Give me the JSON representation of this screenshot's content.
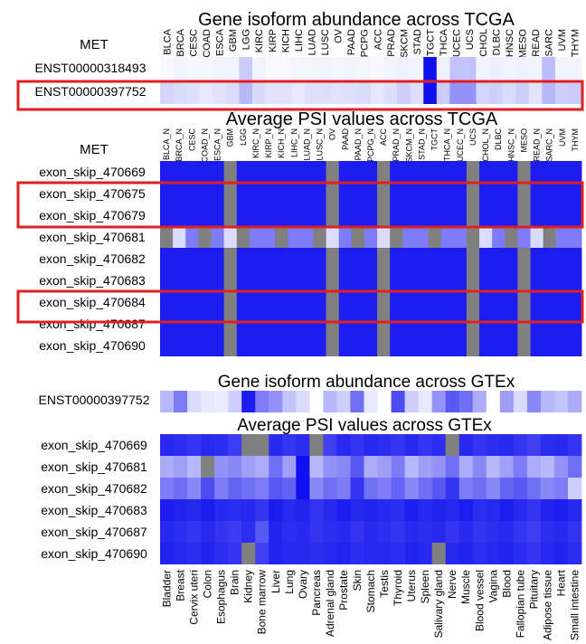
{
  "colors": {
    "high": "#1010ee",
    "low": "#ffffff",
    "na": "#808080",
    "highlight": "#e02020"
  },
  "chart_data": [
    {
      "type": "heatmap",
      "title": "Gene isoform abundance across TCGA",
      "gene": "MET",
      "columns": [
        "BLCA",
        "BRCA",
        "CESC",
        "COAD",
        "ESCA",
        "GBM",
        "LGG",
        "KIRC",
        "KIRP",
        "KICH",
        "LIHC",
        "LUAD",
        "LUSC",
        "OV",
        "PAAD",
        "PCPG",
        "ACC",
        "PRAD",
        "SKCM",
        "STAD",
        "TGCT",
        "THCA",
        "UCEC",
        "UCS",
        "CHOL",
        "DLBC",
        "HNSC",
        "MESO",
        "READ",
        "SARC",
        "UVM",
        "THYM"
      ],
      "rows": [
        "ENST00000318493",
        "ENST00000397752"
      ],
      "values": [
        [
          0.03,
          0.05,
          0.04,
          0.04,
          0.05,
          0.05,
          0.22,
          0.05,
          0.03,
          0.03,
          0.04,
          0.04,
          0.05,
          0.04,
          0.05,
          0.04,
          0.03,
          0.05,
          0.06,
          0.05,
          1.0,
          0.06,
          0.25,
          0.25,
          0.05,
          0.07,
          0.05,
          0.06,
          0.05,
          0.28,
          0.05,
          0.05
        ],
        [
          0.18,
          0.15,
          0.14,
          0.1,
          0.12,
          0.15,
          0.3,
          0.16,
          0.12,
          0.12,
          0.1,
          0.14,
          0.14,
          0.12,
          0.14,
          0.15,
          0.1,
          0.14,
          0.2,
          0.14,
          1.0,
          0.22,
          0.45,
          0.45,
          0.18,
          0.2,
          0.15,
          0.2,
          0.12,
          0.3,
          0.2,
          0.22
        ]
      ],
      "highlighted_rows": [
        "ENST00000397752"
      ]
    },
    {
      "type": "heatmap",
      "title": "Average PSI values across TCGA",
      "gene": "MET",
      "columns": [
        "BLCA_N",
        "BRCA_N",
        "CESC",
        "COAD_N",
        "ESCA_N",
        "GBM",
        "LGG",
        "KIRC_N",
        "KIRP_N",
        "KICH_N",
        "LIHC_N",
        "LUAD_N",
        "LUSC_N",
        "OV",
        "PAAD",
        "PAAD_N",
        "PCPG_N",
        "ACC",
        "PRAD_N",
        "SKCM_N",
        "STAD_N",
        "TGCT",
        "THCA_N",
        "UCEC_N",
        "UCS",
        "CHOL_N",
        "DLBC",
        "HNSC_N",
        "MESO",
        "READ_N",
        "SARC_N",
        "UVM",
        "THYM"
      ],
      "rows": [
        "exon_skip_470669",
        "exon_skip_470675",
        "exon_skip_470679",
        "exon_skip_470681",
        "exon_skip_470682",
        "exon_skip_470683",
        "exon_skip_470684",
        "exon_skip_470687",
        "exon_skip_470690"
      ],
      "na_columns": [
        5,
        13,
        17,
        24,
        28
      ],
      "highlighted_rows": [
        "exon_skip_470675",
        "exon_skip_470679",
        "exon_skip_470684"
      ],
      "row_values": [
        0.95,
        0.95,
        0.95,
        0.45,
        0.95,
        0.95,
        0.95,
        0.95,
        0.95
      ]
    },
    {
      "type": "heatmap",
      "title": "Gene isoform abundance across GTEx",
      "columns": [
        "Bladder",
        "Breast",
        "Cervix uteri",
        "Colon",
        "Esophagus",
        "Brain",
        "Kidney",
        "Bone marrow",
        "Liver",
        "Lung",
        "Ovary",
        "Pancreas",
        "Adrenal gland",
        "Prostate",
        "Skin",
        "Stomach",
        "Testis",
        "Thyroid",
        "Uterus",
        "Spleen",
        "Salivary gland",
        "Nerve",
        "Muscle",
        "Blood vessel",
        "Vagina",
        "Blood",
        "Fallopian tube",
        "Pituitary",
        "Adipose tissue",
        "Heart",
        "Small intestine"
      ],
      "rows": [
        "ENST00000397752"
      ],
      "values": [
        [
          0.3,
          0.55,
          0.15,
          0.1,
          0.08,
          0.2,
          0.95,
          0.55,
          0.45,
          0.25,
          0.15,
          0.0,
          0.3,
          0.2,
          0.6,
          0.1,
          0.0,
          0.75,
          0.2,
          0.1,
          0.45,
          0.7,
          0.6,
          0.35,
          0.0,
          0.4,
          0.15,
          0.5,
          0.3,
          0.25,
          0.35
        ]
      ]
    },
    {
      "type": "heatmap",
      "title": "Average PSI values across GTEx",
      "columns": [
        "Bladder",
        "Breast",
        "Cervix uteri",
        "Colon",
        "Esophagus",
        "Brain",
        "Kidney",
        "Bone marrow",
        "Liver",
        "Lung",
        "Ovary",
        "Pancreas",
        "Adrenal gland",
        "Prostate",
        "Skin",
        "Stomach",
        "Testis",
        "Thyroid",
        "Uterus",
        "Spleen",
        "Salivary gland",
        "Nerve",
        "Muscle",
        "Blood vessel",
        "Vagina",
        "Blood",
        "Fallopian tube",
        "Pituitary",
        "Adipose tissue",
        "Heart",
        "Small intestine"
      ],
      "rows": [
        "exon_skip_470669",
        "exon_skip_470681",
        "exon_skip_470682",
        "exon_skip_470683",
        "exon_skip_470687",
        "exon_skip_470690"
      ],
      "values": [
        [
          0.9,
          0.88,
          0.85,
          0.9,
          0.88,
          0.82,
          null,
          null,
          0.9,
          0.85,
          0.88,
          null,
          0.8,
          0.9,
          0.85,
          0.9,
          0.88,
          0.85,
          0.9,
          0.85,
          0.88,
          null,
          0.9,
          0.85,
          0.88,
          0.9,
          0.85,
          0.8,
          0.88,
          0.9,
          0.85
        ],
        [
          0.35,
          0.4,
          0.3,
          null,
          0.45,
          0.5,
          0.4,
          0.35,
          0.6,
          0.4,
          1.0,
          0.3,
          0.45,
          0.5,
          0.7,
          0.35,
          0.4,
          0.55,
          0.3,
          0.4,
          0.45,
          0.6,
          0.35,
          0.5,
          0.3,
          0.4,
          0.55,
          0.35,
          0.3,
          0.45,
          0.6
        ],
        [
          0.55,
          0.6,
          0.5,
          0.75,
          0.55,
          0.65,
          0.6,
          0.55,
          0.7,
          0.65,
          1.0,
          0.5,
          0.6,
          0.55,
          0.85,
          0.6,
          0.55,
          0.65,
          0.5,
          0.6,
          0.7,
          0.85,
          0.55,
          0.6,
          0.5,
          0.65,
          0.7,
          0.6,
          0.5,
          0.55,
          0.2
        ],
        [
          0.95,
          0.92,
          0.9,
          0.95,
          0.9,
          0.88,
          0.9,
          0.85,
          0.95,
          0.9,
          0.92,
          0.85,
          0.9,
          0.95,
          0.9,
          0.92,
          0.9,
          0.88,
          0.95,
          0.9,
          0.92,
          0.9,
          0.95,
          0.88,
          0.9,
          0.95,
          0.9,
          0.85,
          0.92,
          0.95,
          0.9
        ],
        [
          0.9,
          0.88,
          0.85,
          0.9,
          0.85,
          0.82,
          0.88,
          0.7,
          0.92,
          0.88,
          0.9,
          0.85,
          0.88,
          0.9,
          0.85,
          0.9,
          0.88,
          0.85,
          0.9,
          0.88,
          0.9,
          0.85,
          0.9,
          0.85,
          0.88,
          0.9,
          0.85,
          0.82,
          0.88,
          0.9,
          0.85
        ],
        [
          0.92,
          0.9,
          0.88,
          0.92,
          0.88,
          0.85,
          null,
          0.8,
          0.92,
          0.9,
          0.9,
          0.88,
          0.9,
          0.92,
          0.88,
          0.9,
          0.9,
          0.88,
          0.92,
          0.9,
          null,
          0.9,
          0.92,
          0.88,
          0.9,
          0.92,
          0.88,
          0.85,
          0.9,
          0.92,
          0.88
        ]
      ]
    }
  ]
}
